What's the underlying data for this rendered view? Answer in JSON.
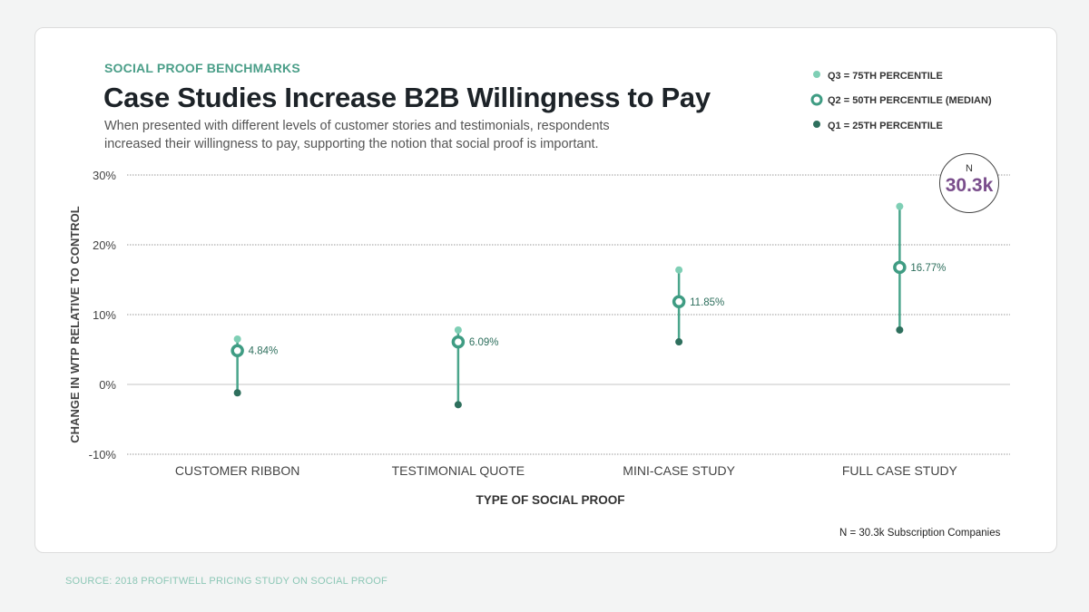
{
  "kicker": "SOCIAL PROOF BENCHMARKS",
  "title": "Case Studies Increase B2B Willingness to Pay",
  "subtitle": "When presented with different levels of customer stories and testimonials, respondents increased their willingness to pay, supporting the notion that social proof is important.",
  "legend": [
    {
      "label": "Q3 = 75TH PERCENTILE",
      "color": "#7fcfb5"
    },
    {
      "label": "Q2 = 50TH PERCENTILE (MEDIAN)",
      "color": "#3f9c83"
    },
    {
      "label": "Q1 = 25TH PERCENTILE",
      "color": "#2e6f5d"
    }
  ],
  "n_badge": {
    "label": "N",
    "value": "30.3k"
  },
  "note": "N = 30.3k Subscription Companies",
  "source": "SOURCE: 2018 PROFITWELL PRICING STUDY ON SOCIAL PROOF",
  "chart_data": {
    "type": "scatter",
    "subtype": "range-dot",
    "xlabel": "TYPE OF SOCIAL PROOF",
    "ylabel": "CHANGE IN WTP RELATIVE TO CONTROL",
    "ylim": [
      -10,
      30
    ],
    "yticks": [
      30,
      20,
      10,
      0,
      -10
    ],
    "ytick_labels": [
      "30%",
      "20%",
      "10%",
      "0%",
      "-10%"
    ],
    "grid": true,
    "legend_position": "top-right",
    "categories": [
      "CUSTOMER RIBBON",
      "TESTIMONIAL QUOTE",
      "MINI-CASE STUDY",
      "FULL CASE STUDY"
    ],
    "q3": [
      6.5,
      7.8,
      16.4,
      25.5
    ],
    "median": [
      4.84,
      6.09,
      11.85,
      16.77
    ],
    "median_labels": [
      "4.84%",
      "6.09%",
      "11.85%",
      "16.77%"
    ],
    "q1": [
      -1.2,
      -2.9,
      6.1,
      7.8
    ]
  }
}
